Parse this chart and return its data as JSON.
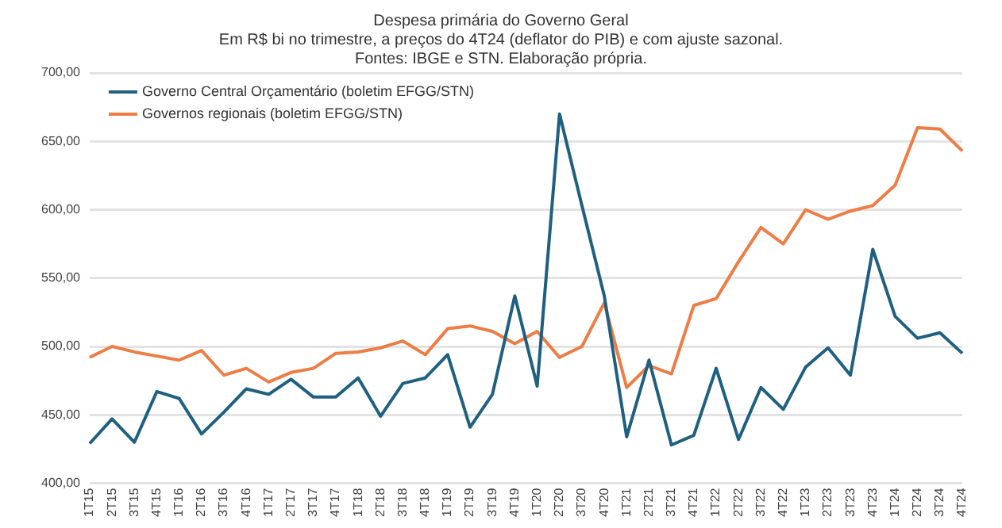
{
  "chart_data": {
    "type": "line",
    "title": "Despesa primária do Governo Geral",
    "subtitle": "Em R$ bi no trimestre, a preços do 4T24 (deflator do PIB) e com ajuste sazonal.\nFontes: IBGE e STN. Elaboração própria.",
    "categories": [
      "1T15",
      "2T15",
      "3T15",
      "4T15",
      "1T16",
      "2T16",
      "3T16",
      "4T16",
      "1T17",
      "2T17",
      "3T17",
      "4T17",
      "1T18",
      "2T18",
      "3T18",
      "4T18",
      "1T19",
      "2T19",
      "3T19",
      "4T19",
      "1T20",
      "2T20",
      "3T20",
      "4T20",
      "1T21",
      "2T21",
      "3T21",
      "4T21",
      "1T22",
      "2T22",
      "3T22",
      "4T22",
      "1T23",
      "2T23",
      "3T23",
      "4T23",
      "1T24",
      "2T24",
      "3T24",
      "4T24"
    ],
    "series": [
      {
        "name": "Governo Central Orçamentário (boletim EFGG/STN)",
        "color": "#1f6080",
        "values": [
          429,
          447,
          430,
          467,
          462,
          436,
          452,
          469,
          465,
          476,
          463,
          463,
          477,
          449,
          473,
          477,
          494,
          441,
          465,
          537,
          471,
          670,
          603,
          537,
          434,
          490,
          428,
          435,
          484,
          432,
          470,
          454,
          485,
          499,
          479,
          571,
          522,
          506,
          510,
          495
        ]
      },
      {
        "name": "Governos regionais (boletim EFGG/STN)",
        "color": "#ed7d45",
        "values": [
          492,
          500,
          496,
          493,
          490,
          497,
          479,
          484,
          474,
          481,
          484,
          495,
          496,
          499,
          504,
          494,
          513,
          515,
          511,
          502,
          511,
          492,
          500,
          532,
          470,
          486,
          480,
          530,
          535,
          562,
          587,
          575,
          600,
          593,
          599,
          603,
          618,
          660,
          659,
          643
        ]
      }
    ],
    "ylim": [
      400,
      700
    ],
    "yticks": [
      {
        "value": 400,
        "label": "400,00"
      },
      {
        "value": 450,
        "label": "450,00"
      },
      {
        "value": 500,
        "label": "500,00"
      },
      {
        "value": 550,
        "label": "550,00"
      },
      {
        "value": 600,
        "label": "600,00"
      },
      {
        "value": 650,
        "label": "650,00"
      },
      {
        "value": 700,
        "label": "700,00"
      }
    ],
    "grid": "y",
    "legend": "top left",
    "marker": "none",
    "line_style": "solid"
  }
}
